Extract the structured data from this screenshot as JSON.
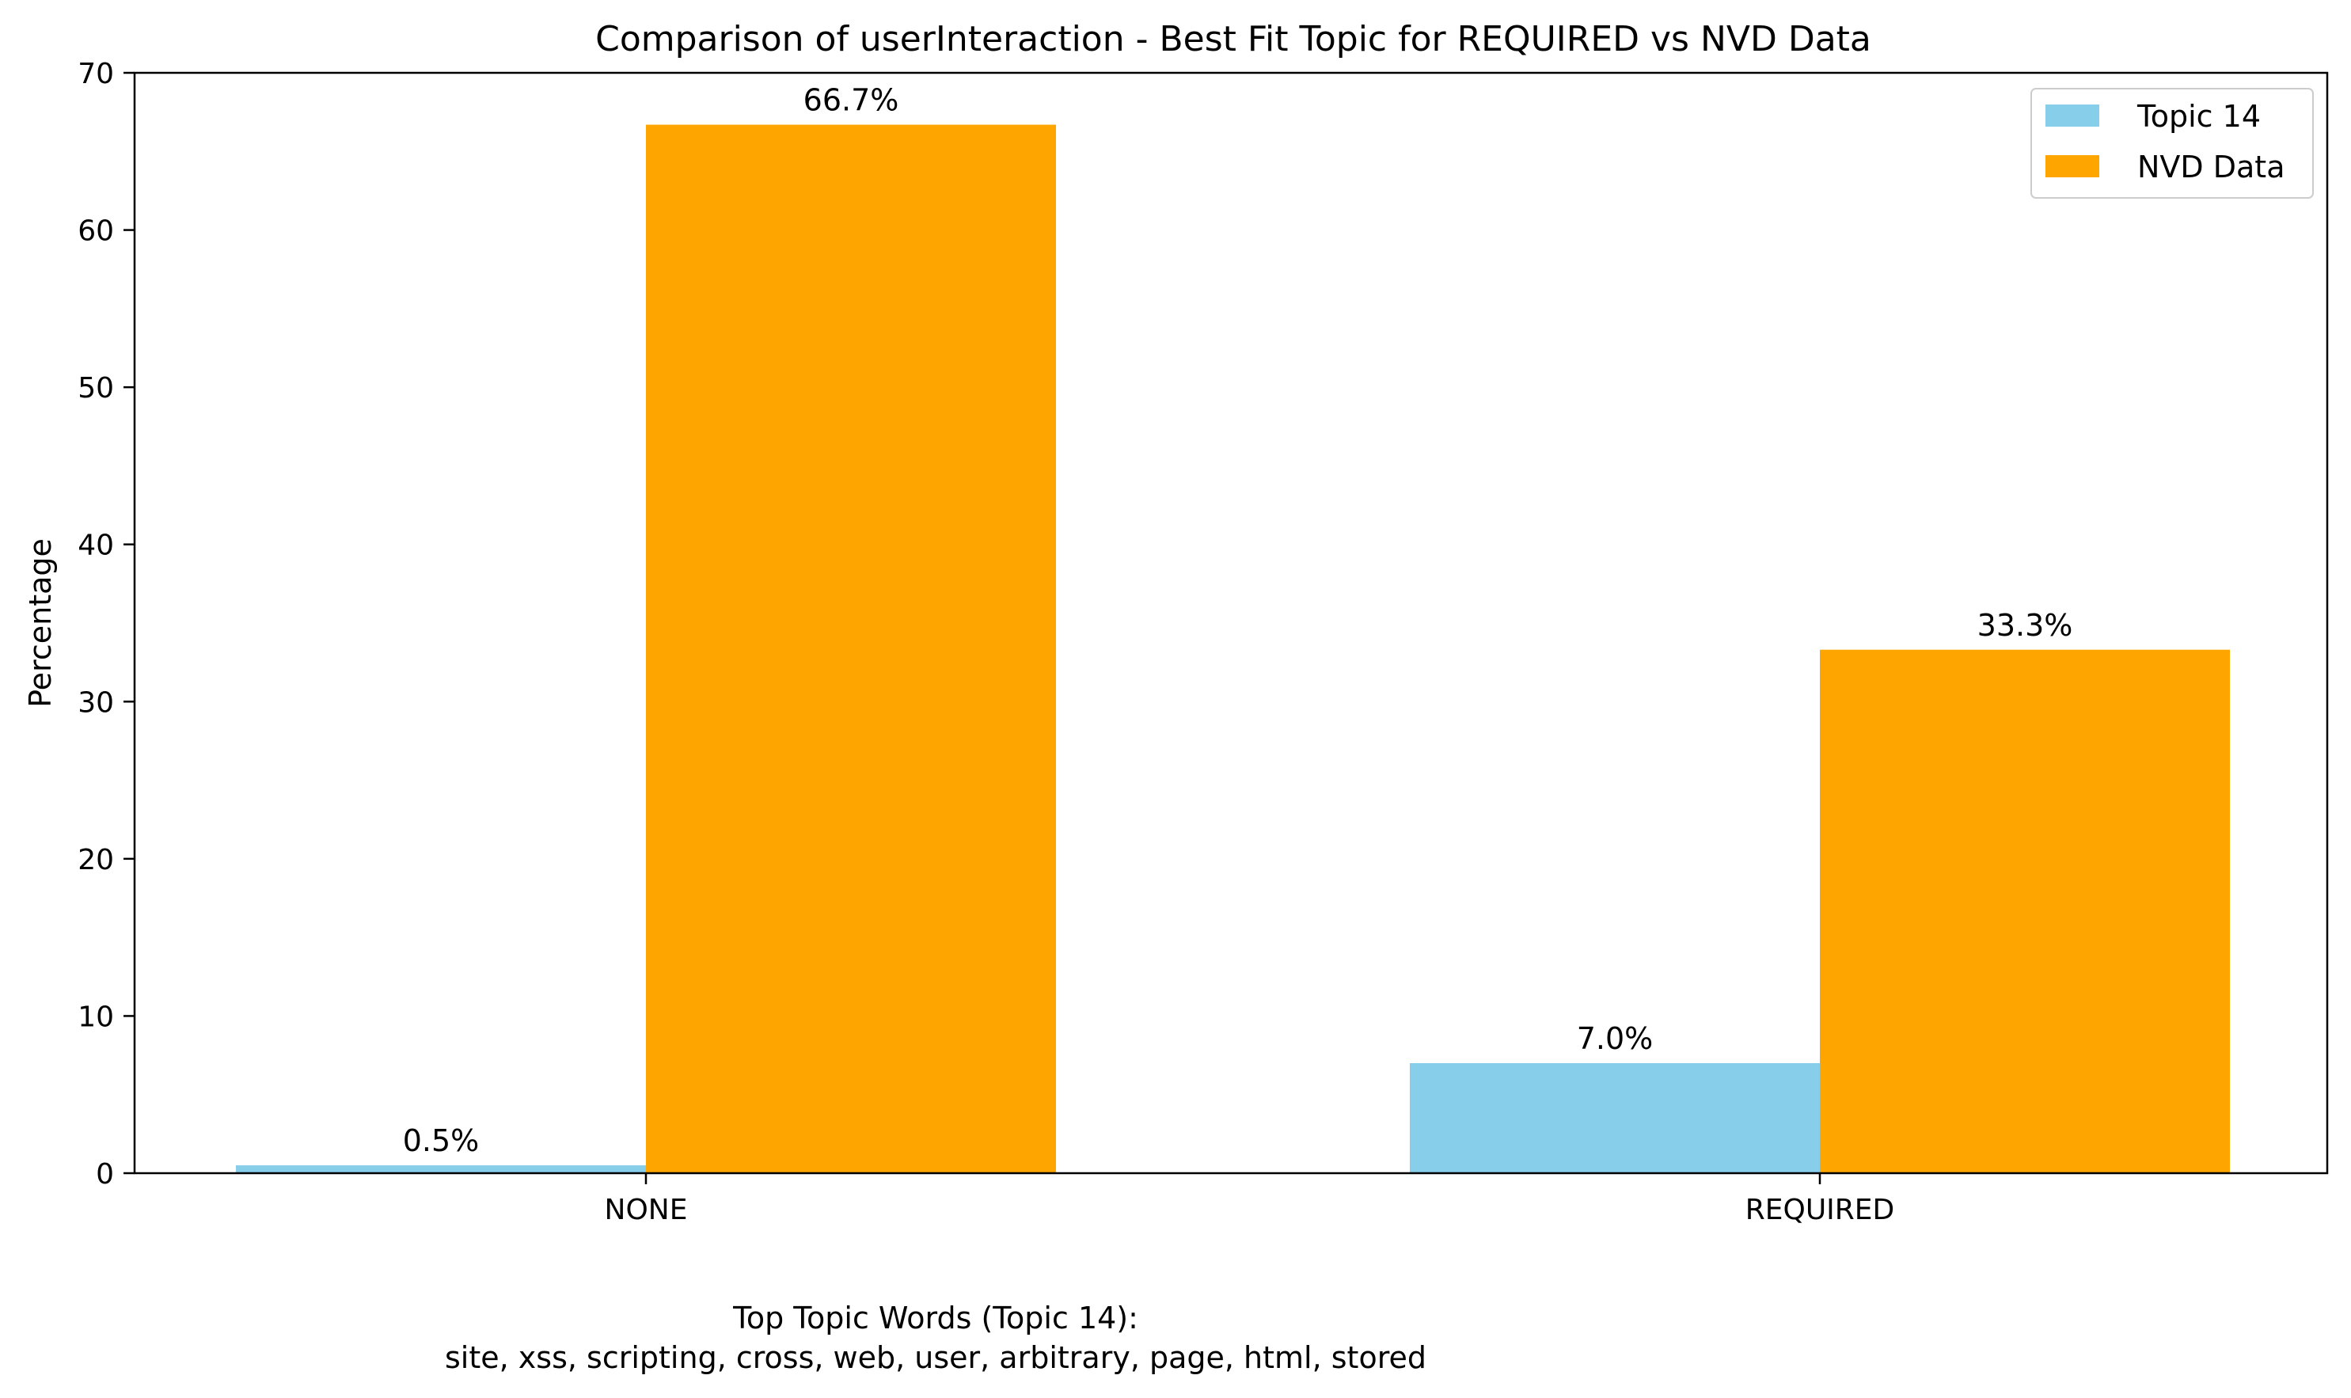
{
  "chart_data": {
    "type": "bar",
    "title": "Comparison of userInteraction - Best Fit Topic for REQUIRED vs NVD Data",
    "xlabel": "",
    "ylabel": "Percentage",
    "categories": [
      "NONE",
      "REQUIRED"
    ],
    "series": [
      {
        "name": "Topic 14",
        "color": "#87ceeb",
        "values": [
          0.5,
          7.0
        ],
        "labels": [
          "0.5%",
          "7.0%"
        ]
      },
      {
        "name": "NVD Data",
        "color": "#ffa500",
        "values": [
          66.7,
          33.3
        ],
        "labels": [
          "66.7%",
          "33.3%"
        ]
      }
    ],
    "ylim": [
      0,
      70
    ],
    "yticks": [
      0,
      10,
      20,
      30,
      40,
      50,
      60,
      70
    ],
    "grid": false,
    "legend_position": "top-right"
  },
  "caption": {
    "line1": "Top Topic Words (Topic 14):",
    "line2": "site,  xss,  scripting,  cross,  web,  user,  arbitrary,  page,  html,  stored"
  }
}
